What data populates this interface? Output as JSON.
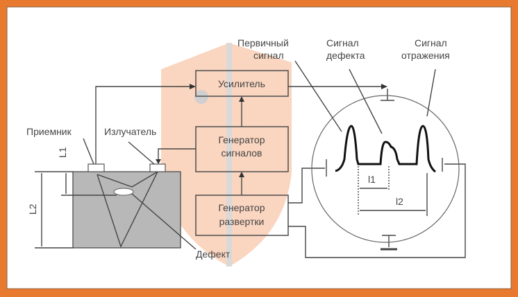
{
  "colors": {
    "frame": "#e87a2f",
    "specimen": "#b8b8b8",
    "watermark": "#f6b48c"
  },
  "blocks": {
    "amplifier": "Усилитель",
    "signal_gen_1": "Генератор",
    "signal_gen_2": "сигналов",
    "sweep_gen_1": "Генератор",
    "sweep_gen_2": "развертки"
  },
  "labels": {
    "receiver": "Приемник",
    "emitter": "Излучатель",
    "defect": "Дефект",
    "l1_depth": "L1",
    "l2_depth": "L2",
    "primary_1": "Первичный",
    "primary_2": "сигнал",
    "defect_signal_1": "Сигнал",
    "defect_signal_2": "дефекта",
    "reflection_1": "Сигнал",
    "reflection_2": "отражения",
    "l1_screen": "l1",
    "l2_screen": "l2"
  }
}
